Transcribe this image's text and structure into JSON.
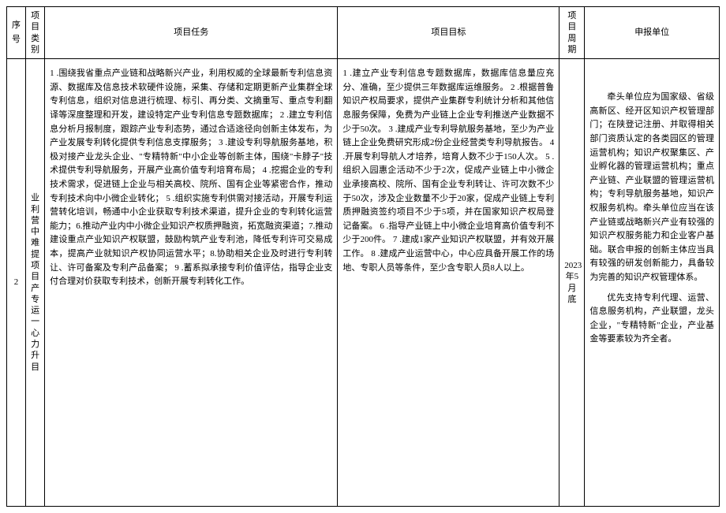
{
  "header": {
    "seq": "序号",
    "category": "项目类别",
    "task": "项目任务",
    "goal": "项目目标",
    "period": "项目周期",
    "unit": "申报单位"
  },
  "row": {
    "seq": "2",
    "category": "业利营中难提项目产专运一心力升目",
    "task": "1 .围绕我省重点产业链和战略新兴产业，利用权威的全球最新专利信息资源、数据库及信息技术软硬件设施，采集、存储和定期更新产业集群全球专利信息，组织对信息进行梳理、标引、再分类、文摘重写、重点专利翻译等深度整理和开发，建设特定产业专利信息专题数据库；\n2 .建立专利信息分析月报制度，跟踪产业专利态势，通过合适途径向创新主体发布，为产业发展专利转化提供专利信息支撑服务；\n3 .建设专利导航服务基地，积极对接产业龙头企业、\"专精特新\"中小企业等创新主体，围绕\"卡脖子\"技术提供专利导航服务，开展产业高价值专利培育布局；\n4 .挖掘企业的专利技术需求，促进链上企业与相关高校、院所、国有企业等紧密合作，推动专利技术向中小微企业转化；\n5 .组织实施专利供需对接活动，开展专利运营转化培训，畅通中小企业获取专利技术渠道，提升企业的专利转化运营能力；6.推动产业内中小微企业知识产权质押融资，拓宽融资渠道；7.推动建设重点产业知识产权联盟，鼓励构筑产业专利池，降低专利许可交易成本，提高产业就知识产权协同运营水平；8.协助相关企业及时进行专利转让、许可备案及专利产品备案；\n9 .蓄系拟承接专利价值评估，指导企业支付合理对价获取专利技术，创新开展专利转化工作。",
    "goal": "1 .建立产业专利信息专题数据库，数据库信息量应充分、准确，至少提供三年数据库运维服务。\n2 .根据普鲁知识产权局要求，提供产业集群专利统计分析和其他信息服务保障，免费为产业链上企业专利推送产业数据不少于50次。\n3 .建成产业专利导航服务基地，至少为产业链上企业免费研究形成2份企业经营类专利导航报告。\n4 .开展专利导航人才培养，培育人数不少于150人次。\n5 .组织入园惠企活动不少于2次，促成产业链上中小微企业承接高校、院所、国有企业专利转让、许可次数不少于50次，涉及企业数量不少于20家，促成产业链上专利质押融资签约项目不少于5项，并在国家知识产权局登记备案。\n6 .指导产业链上中小微企业培育高价值专利不少于200件。\n7 .建成1家产业知识产权联盟，并有效开展工作。\n8 .建成产业运营中心，中心应具备开展工作的场地、专职人员等条件，至少含专职人员8人以上。",
    "period": "2023年5月底",
    "unit_p1": "牵头单位应为国家级、省级高新区、经开区知识产权管理部门；在陕登记注册、并取得相关部门资质认定的各类园区的管理运营机构；知识产权聚集区、产业孵化器的管理运营机构；重点产业链、产业联盟的管理运营机构；专利导航服务基地，知识产权服务机构。牵头单位应当在该产业链或战略新兴产业有较强的知识产权服务能力和企业客户基础。联合申报的创新主体应当具有较强的研发创新能力，具备较为完善的知识产权管理体系。",
    "unit_p2": "优先支持专利代理、运营、信息服务机构，产业联盟，龙头企业，\"专精特新\"企业，产业基金等要素较为齐全者。"
  }
}
